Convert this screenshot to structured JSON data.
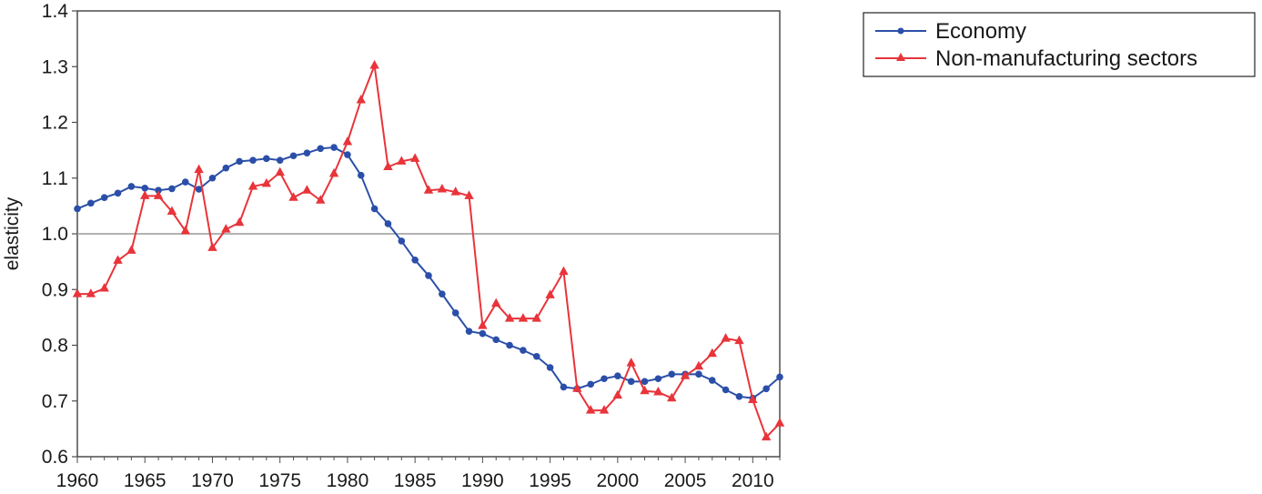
{
  "chart_data": {
    "type": "line",
    "title": "",
    "xlabel": "",
    "ylabel": "elasticity",
    "xlim": [
      1960,
      2012
    ],
    "ylim": [
      0.6,
      1.4
    ],
    "reference_line": 1.0,
    "grid": false,
    "legend_position": "right",
    "x_ticks": [
      1960,
      1965,
      1970,
      1975,
      1980,
      1985,
      1990,
      1995,
      2000,
      2005,
      2010
    ],
    "y_ticks": [
      "0.6",
      "0.7",
      "0.8",
      "0.9",
      "1.0",
      "1.1",
      "1.2",
      "1.3",
      "1.4"
    ],
    "x": [
      1960,
      1961,
      1962,
      1963,
      1964,
      1965,
      1966,
      1967,
      1968,
      1969,
      1970,
      1971,
      1972,
      1973,
      1974,
      1975,
      1976,
      1977,
      1978,
      1979,
      1980,
      1981,
      1982,
      1983,
      1984,
      1985,
      1986,
      1987,
      1988,
      1989,
      1990,
      1991,
      1992,
      1993,
      1994,
      1995,
      1996,
      1997,
      1998,
      1999,
      2000,
      2001,
      2002,
      2003,
      2004,
      2005,
      2006,
      2007,
      2008,
      2009,
      2010,
      2011,
      2012
    ],
    "series": [
      {
        "name": "Economy",
        "color": "#2b4fa8",
        "marker": "circle",
        "values": [
          1.045,
          1.055,
          1.065,
          1.073,
          1.085,
          1.082,
          1.078,
          1.081,
          1.093,
          1.08,
          1.1,
          1.118,
          1.13,
          1.132,
          1.135,
          1.132,
          1.14,
          1.145,
          1.153,
          1.155,
          1.142,
          1.105,
          1.045,
          1.018,
          0.987,
          0.953,
          0.925,
          0.892,
          0.858,
          0.825,
          0.821,
          0.81,
          0.8,
          0.791,
          0.78,
          0.76,
          0.725,
          0.722,
          0.73,
          0.74,
          0.745,
          0.735,
          0.735,
          0.74,
          0.748,
          0.748,
          0.748,
          0.737,
          0.72,
          0.708,
          0.705,
          0.722,
          0.743
        ]
      },
      {
        "name": "Non-manufacturing sectors",
        "color": "#e8343a",
        "marker": "triangle",
        "values": [
          0.892,
          0.892,
          0.902,
          0.952,
          0.97,
          1.068,
          1.068,
          1.04,
          1.005,
          1.115,
          0.975,
          1.008,
          1.02,
          1.085,
          1.09,
          1.11,
          1.065,
          1.078,
          1.06,
          1.108,
          1.165,
          1.24,
          1.302,
          1.12,
          1.13,
          1.135,
          1.078,
          1.08,
          1.075,
          1.068,
          0.835,
          0.875,
          0.848,
          0.848,
          0.848,
          0.89,
          0.932,
          0.722,
          0.683,
          0.683,
          0.71,
          0.768,
          0.718,
          0.716,
          0.705,
          0.745,
          0.762,
          0.785,
          0.812,
          0.808,
          0.702,
          0.635,
          0.66
        ]
      }
    ]
  }
}
